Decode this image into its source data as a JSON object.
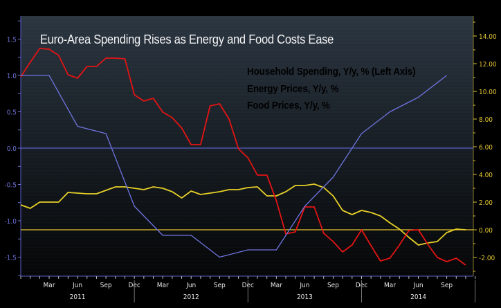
{
  "chart_data": {
    "type": "line",
    "title": "Euro-Area Spending Rises as Energy and Food Costs Ease",
    "x_start": "2010-12",
    "x_end": "2014-11",
    "month_tick_labels": [
      "Mar",
      "Jun",
      "Sep",
      "Dec",
      "Mar",
      "Jun",
      "Sep",
      "Dec",
      "Mar",
      "Jun",
      "Sep",
      "Dec",
      "Mar",
      "Jun",
      "Sep"
    ],
    "year_labels": [
      "2011",
      "2012",
      "2013",
      "2014"
    ],
    "left_axis": {
      "ylim": [
        -1.75,
        1.8
      ],
      "ticks": [
        "1.5",
        "1.0",
        "0.5",
        "0.0",
        "-0.5",
        "-1.0",
        "-1.5"
      ],
      "color": "#6f74d8"
    },
    "right_axis": {
      "ylim": [
        -3.0,
        15.5
      ],
      "ticks": [
        "14.00",
        "12.00",
        "10.00",
        "8.00",
        "6.00",
        "4.00",
        "2.00",
        "0.00",
        "-2.00"
      ],
      "color": "#e6c832"
    },
    "reference_lines": [
      {
        "axis": "left",
        "value": 0.0,
        "color": "#5a60c8"
      },
      {
        "axis": "right",
        "value": 0.0,
        "color": "#e6c832"
      }
    ],
    "legend_placement": "top-right",
    "series": [
      {
        "name": "Household Spending, Y/y, % (Left Axis)",
        "axis": "left",
        "color": "#6f74e0",
        "frequency": "quarterly",
        "values": [
          1.0,
          1.0,
          0.3,
          0.2,
          -0.8,
          -1.2,
          -1.2,
          -1.5,
          -1.4,
          -1.4,
          -0.8,
          -0.4,
          0.2,
          0.5,
          0.7,
          1.0
        ]
      },
      {
        "name": "Energy Prices, Y/y, %",
        "axis": "right",
        "color": "#e41414",
        "frequency": "monthly",
        "values": [
          11.05,
          12.1,
          13.1,
          13.05,
          12.6,
          11.2,
          10.95,
          11.8,
          11.8,
          12.4,
          12.4,
          12.35,
          9.75,
          9.3,
          9.5,
          8.5,
          8.1,
          7.35,
          6.15,
          6.15,
          8.95,
          9.1,
          8.0,
          5.85,
          5.2,
          3.95,
          3.95,
          2.1,
          -0.3,
          -0.15,
          1.65,
          1.65,
          -0.25,
          -0.85,
          -1.6,
          -1.1,
          0.0,
          -1.15,
          -2.25,
          -2.05,
          -1.1,
          -0.05,
          0.0,
          -1.05,
          -2.0,
          -2.3,
          -2.05,
          -2.55
        ]
      },
      {
        "name": "Food Prices, Y/y, %",
        "axis": "right",
        "color": "#e8d028",
        "frequency": "monthly",
        "values": [
          1.8,
          1.55,
          2.0,
          2.0,
          2.0,
          2.7,
          2.65,
          2.6,
          2.6,
          2.85,
          3.1,
          3.1,
          3.0,
          2.9,
          3.1,
          3.0,
          2.75,
          2.3,
          2.8,
          2.55,
          2.65,
          2.75,
          2.9,
          2.9,
          3.05,
          3.1,
          2.45,
          2.45,
          2.75,
          3.2,
          3.2,
          3.3,
          3.05,
          2.45,
          1.4,
          1.1,
          1.4,
          1.25,
          1.0,
          0.5,
          0.05,
          -0.55,
          -1.1,
          -0.95,
          -0.85,
          -0.2,
          0.05,
          0.0
        ]
      }
    ]
  }
}
